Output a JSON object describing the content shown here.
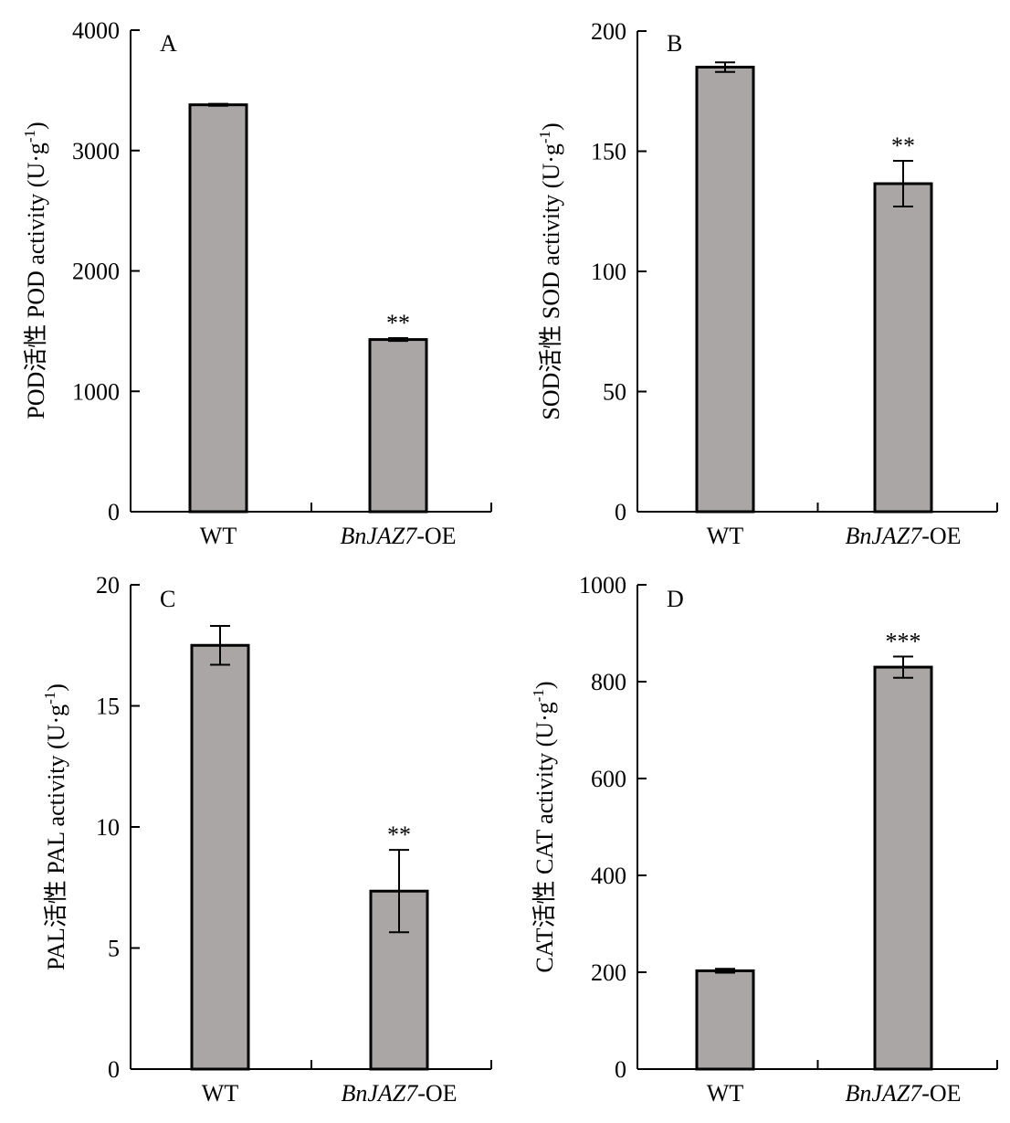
{
  "figure": {
    "bar_color": "#aaa6a6",
    "axis_color": "#000000"
  },
  "chart_data": [
    {
      "type": "bar",
      "panel_label": "A",
      "ylabel": "POD活性 POD activity (U·g-1)",
      "ylabel_main": "POD活性 POD activity (U·g",
      "ylabel_sup": "-1",
      "ylabel_end": ")",
      "categories": [
        {
          "text": "WT",
          "italic": "",
          "suffix": ""
        },
        {
          "text": "",
          "italic": "BnJAZ7",
          "suffix": "-OE"
        }
      ],
      "values": [
        3380,
        1430
      ],
      "errors": [
        8,
        12
      ],
      "significance": [
        "",
        "**"
      ],
      "ylim": [
        0,
        4000
      ],
      "yticks": [
        0,
        1000,
        2000,
        3000,
        4000
      ],
      "ytick_labels": [
        "0",
        "1000",
        "2000",
        "3000",
        "4000"
      ]
    },
    {
      "type": "bar",
      "panel_label": "B",
      "ylabel": "SOD活性 SOD activity (U·g-1)",
      "ylabel_main": "SOD活性 SOD activity (U·g",
      "ylabel_sup": "-1",
      "ylabel_end": ")",
      "categories": [
        {
          "text": "WT",
          "italic": "",
          "suffix": ""
        },
        {
          "text": "",
          "italic": "BnJAZ7",
          "suffix": "-OE"
        }
      ],
      "values": [
        185,
        136.5
      ],
      "errors": [
        2,
        9.5
      ],
      "significance": [
        "",
        "**"
      ],
      "ylim": [
        0,
        200
      ],
      "yticks": [
        0,
        50,
        100,
        150,
        200
      ],
      "ytick_labels": [
        "0",
        "50",
        "100",
        "150",
        "200"
      ]
    },
    {
      "type": "bar",
      "panel_label": "C",
      "ylabel": "PAL活性 PAL activity (U·g-1)",
      "ylabel_main": "PAL活性 PAL activity (U·g",
      "ylabel_sup": "-1",
      "ylabel_end": ")",
      "categories": [
        {
          "text": "WT",
          "italic": "",
          "suffix": ""
        },
        {
          "text": "",
          "italic": "BnJAZ7",
          "suffix": "-OE"
        }
      ],
      "values": [
        17.5,
        7.35
      ],
      "errors": [
        0.8,
        1.7
      ],
      "significance": [
        "",
        "**"
      ],
      "ylim": [
        0,
        20
      ],
      "yticks": [
        0,
        5,
        10,
        15,
        20
      ],
      "ytick_labels": [
        "0",
        "5",
        "10",
        "15",
        "20"
      ]
    },
    {
      "type": "bar",
      "panel_label": "D",
      "ylabel": "CAT活性 CAT activity (U·g-1)",
      "ylabel_main": "CAT活性 CAT activity (U·g",
      "ylabel_sup": "-1",
      "ylabel_end": ")",
      "categories": [
        {
          "text": "WT",
          "italic": "",
          "suffix": ""
        },
        {
          "text": "",
          "italic": "BnJAZ7",
          "suffix": "-OE"
        }
      ],
      "values": [
        203,
        830
      ],
      "errors": [
        4,
        22
      ],
      "significance": [
        "",
        "***"
      ],
      "ylim": [
        0,
        1000
      ],
      "yticks": [
        0,
        200,
        400,
        600,
        800,
        1000
      ],
      "ytick_labels": [
        "0",
        "200",
        "400",
        "600",
        "800",
        "1000"
      ]
    }
  ]
}
